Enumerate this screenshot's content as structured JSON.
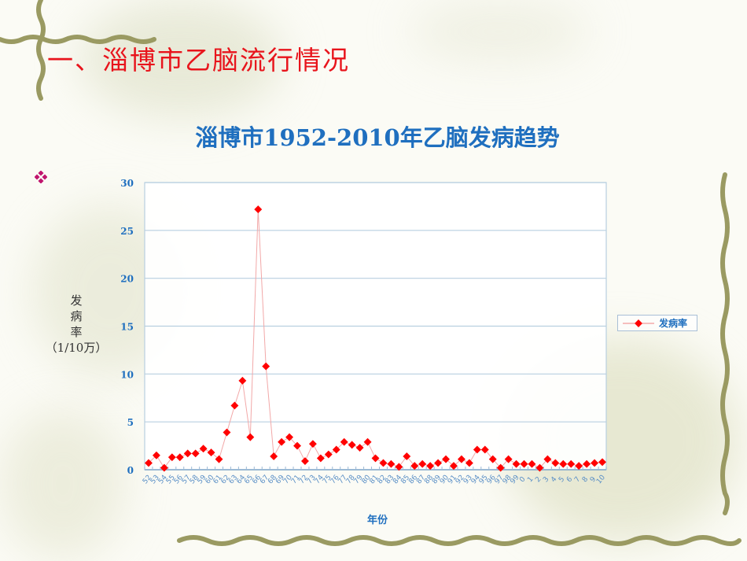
{
  "slide": {
    "title": "一、淄博市乙脑流行情况",
    "title_color": "#e8141c",
    "bullet_icon": "diamond-cluster-bullet",
    "bullet_color": "#c0156e"
  },
  "chart_data": {
    "type": "line",
    "title": "淄博市1952-2010年乙脑发病趋势",
    "xlabel": "年份",
    "ylabel_lines": [
      "发",
      "病",
      "率",
      "（1/10万）"
    ],
    "ylabel": "发病率（1/10万）",
    "ylim": [
      0,
      30
    ],
    "yticks": [
      0,
      5,
      10,
      15,
      20,
      25,
      30
    ],
    "grid": true,
    "legend_position": "right",
    "categories": [
      "52",
      "53",
      "54",
      "55",
      "56",
      "57",
      "58",
      "59",
      "60",
      "61",
      "62",
      "63",
      "64",
      "65",
      "66",
      "67",
      "68",
      "69",
      "70",
      "71",
      "72",
      "73",
      "74",
      "75",
      "76",
      "77",
      "78",
      "79",
      "80",
      "81",
      "82",
      "83",
      "84",
      "85",
      "86",
      "87",
      "88",
      "89",
      "90",
      "91",
      "92",
      "93",
      "94",
      "95",
      "96",
      "97",
      "98",
      "99",
      "0",
      "1",
      "2",
      "3",
      "4",
      "5",
      "6",
      "7",
      "8",
      "9",
      "10"
    ],
    "series": [
      {
        "name": "发病率",
        "color": "#ff0000",
        "line_color": "#f2a8a8",
        "marker": "diamond",
        "values": [
          0.7,
          1.5,
          0.2,
          1.3,
          1.3,
          1.7,
          1.7,
          2.2,
          1.8,
          1.1,
          3.9,
          6.7,
          9.3,
          3.4,
          27.2,
          10.8,
          1.4,
          2.9,
          3.4,
          2.5,
          0.9,
          2.7,
          1.2,
          1.6,
          2.1,
          2.9,
          2.6,
          2.3,
          2.9,
          1.2,
          0.7,
          0.6,
          0.3,
          1.4,
          0.4,
          0.6,
          0.4,
          0.7,
          1.1,
          0.4,
          1.1,
          0.7,
          2.1,
          2.1,
          1.1,
          0.2,
          1.1,
          0.6,
          0.6,
          0.6,
          0.2,
          1.1,
          0.7,
          0.6,
          0.6,
          0.4,
          0.6,
          0.7,
          0.8
        ]
      }
    ]
  },
  "legend": {
    "label": "发病率"
  },
  "colors": {
    "axis_text": "#1f6fbf",
    "grid": "#b8cfe0",
    "border_vine": "#9a9a62"
  }
}
